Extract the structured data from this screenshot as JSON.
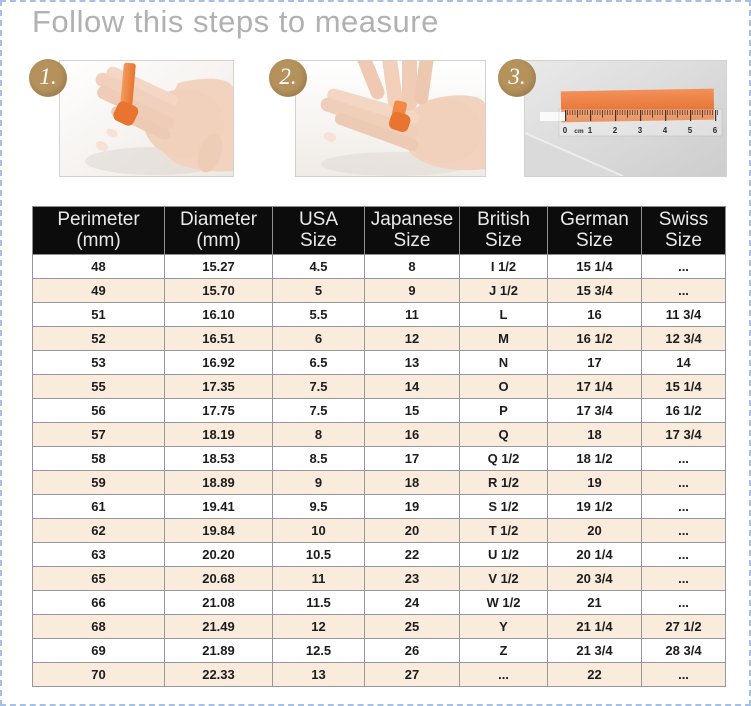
{
  "page": {
    "title": "Follow this steps to measure"
  },
  "steps": [
    {
      "number": "1.",
      "photo": "hand-with-orange-strip-wrapped-around-finger"
    },
    {
      "number": "2.",
      "photo": "fingers-tightening-strip-on-finger"
    },
    {
      "number": "3.",
      "photo": "ruler-measuring-orange-strip"
    }
  ],
  "ruler_labels": [
    "0",
    "cm",
    "1",
    "2",
    "3",
    "4",
    "5",
    "6"
  ],
  "table": {
    "headers": [
      {
        "line1": "Perimeter",
        "line2": "(mm)"
      },
      {
        "line1": "Diameter",
        "line2": "(mm)"
      },
      {
        "line1": "USA",
        "line2": "Size"
      },
      {
        "line1": "Japanese",
        "line2": "Size"
      },
      {
        "line1": "British",
        "line2": "Size"
      },
      {
        "line1": "German",
        "line2": "Size"
      },
      {
        "line1": "Swiss",
        "line2": "Size"
      }
    ],
    "rows": [
      [
        "48",
        "15.27",
        "4.5",
        "8",
        "I 1/2",
        "15 1/4",
        "..."
      ],
      [
        "49",
        "15.70",
        "5",
        "9",
        "J 1/2",
        "15 3/4",
        "..."
      ],
      [
        "51",
        "16.10",
        "5.5",
        "11",
        "L",
        "16",
        "11 3/4"
      ],
      [
        "52",
        "16.51",
        "6",
        "12",
        "M",
        "16 1/2",
        "12 3/4"
      ],
      [
        "53",
        "16.92",
        "6.5",
        "13",
        "N",
        "17",
        "14"
      ],
      [
        "55",
        "17.35",
        "7.5",
        "14",
        "O",
        "17 1/4",
        "15 1/4"
      ],
      [
        "56",
        "17.75",
        "7.5",
        "15",
        "P",
        "17 3/4",
        "16 1/2"
      ],
      [
        "57",
        "18.19",
        "8",
        "16",
        "Q",
        "18",
        "17 3/4"
      ],
      [
        "58",
        "18.53",
        "8.5",
        "17",
        "Q 1/2",
        "18 1/2",
        "..."
      ],
      [
        "59",
        "18.89",
        "9",
        "18",
        "R 1/2",
        "19",
        "..."
      ],
      [
        "61",
        "19.41",
        "9.5",
        "19",
        "S 1/2",
        "19 1/2",
        "..."
      ],
      [
        "62",
        "19.84",
        "10",
        "20",
        "T 1/2",
        "20",
        "..."
      ],
      [
        "63",
        "20.20",
        "10.5",
        "22",
        "U 1/2",
        "20 1/4",
        "..."
      ],
      [
        "65",
        "20.68",
        "11",
        "23",
        "V 1/2",
        "20 3/4",
        "..."
      ],
      [
        "66",
        "21.08",
        "11.5",
        "24",
        "W 1/2",
        "21",
        "..."
      ],
      [
        "68",
        "21.49",
        "12",
        "25",
        "Y",
        "21 1/4",
        "27 1/2"
      ],
      [
        "69",
        "21.89",
        "12.5",
        "26",
        "Z",
        "21 3/4",
        "28 3/4"
      ],
      [
        "70",
        "22.33",
        "13",
        "27",
        "...",
        "22",
        "..."
      ]
    ]
  },
  "colors": {
    "badge_gold": "#b5925c",
    "strip_orange": "#e8742f",
    "row_alt": "#faecdc",
    "header_bg": "#0c0c0c",
    "page_border_blue": "#a6c0e4"
  }
}
